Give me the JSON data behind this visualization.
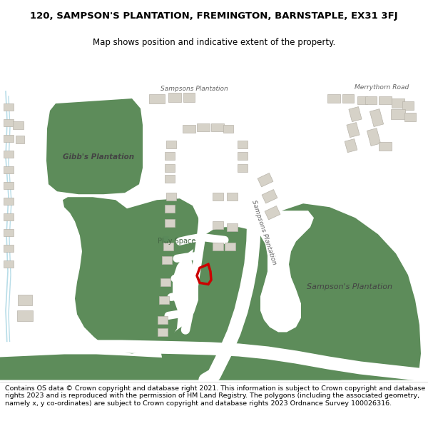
{
  "title_line1": "120, SAMPSON'S PLANTATION, FREMINGTON, BARNSTAPLE, EX31 3FJ",
  "title_line2": "Map shows position and indicative extent of the property.",
  "footer_text": "Contains OS data © Crown copyright and database right 2021. This information is subject to Crown copyright and database rights 2023 and is reproduced with the permission of HM Land Registry. The polygons (including the associated geometry, namely x, y co-ordinates) are subject to Crown copyright and database rights 2023 Ordnance Survey 100026316.",
  "bg_color": "#f5f3f0",
  "green_color": "#5d8c5a",
  "road_color": "#ffffff",
  "building_color": "#d6d2c8",
  "building_outline": "#b8b4aa",
  "red_plot_color": "#cc0000",
  "stream_color": "#b8dde8",
  "label_color": "#444444",
  "road_label_color": "#666666",
  "title_fontsize": 9.5,
  "subtitle_fontsize": 8.5,
  "footer_fontsize": 6.8,
  "map_label_fontsize": 7.5,
  "road_label_fontsize": 6.5
}
